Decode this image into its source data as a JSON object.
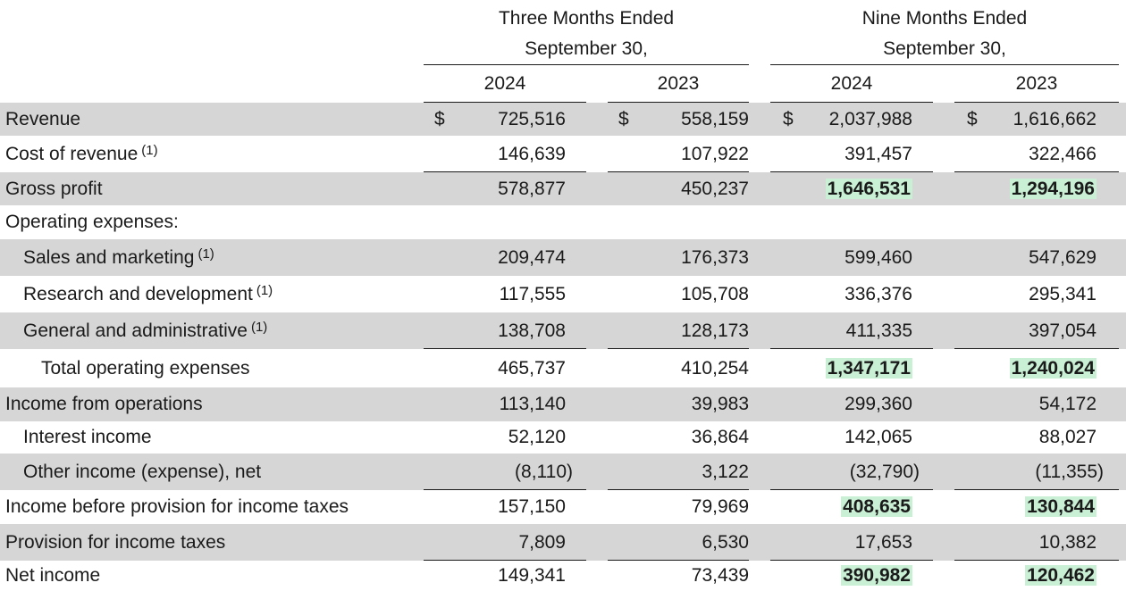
{
  "header": {
    "three_months_line1": "Three Months Ended",
    "three_months_line2": "September 30,",
    "nine_months_line1": "Nine Months Ended",
    "nine_months_line2": "September 30,",
    "years": [
      "2024",
      "2023",
      "2024",
      "2023"
    ]
  },
  "currency_symbol": "$",
  "highlight_color": "#c9f0d5",
  "rows": [
    {
      "label": "Revenue",
      "sup": "",
      "values": [
        "725,516",
        "558,159",
        "2,037,988",
        "1,616,662"
      ]
    },
    {
      "label": "Cost of revenue",
      "sup": "(1)",
      "values": [
        "146,639",
        "107,922",
        "391,457",
        "322,466"
      ]
    },
    {
      "label": "Gross profit",
      "sup": "",
      "values": [
        "578,877",
        "450,237",
        "1,646,531",
        "1,294,196"
      ]
    },
    {
      "label": "Operating expenses:",
      "sup": "",
      "values": [
        "",
        "",
        "",
        ""
      ]
    },
    {
      "label": "Sales and marketing",
      "sup": "(1)",
      "values": [
        "209,474",
        "176,373",
        "599,460",
        "547,629"
      ]
    },
    {
      "label": "Research and development",
      "sup": "(1)",
      "values": [
        "117,555",
        "105,708",
        "336,376",
        "295,341"
      ]
    },
    {
      "label": "General and administrative",
      "sup": "(1)",
      "values": [
        "138,708",
        "128,173",
        "411,335",
        "397,054"
      ]
    },
    {
      "label": "Total operating expenses",
      "sup": "",
      "values": [
        "465,737",
        "410,254",
        "1,347,171",
        "1,240,024"
      ]
    },
    {
      "label": "Income from operations",
      "sup": "",
      "values": [
        "113,140",
        "39,983",
        "299,360",
        "54,172"
      ]
    },
    {
      "label": "Interest income",
      "sup": "",
      "values": [
        "52,120",
        "36,864",
        "142,065",
        "88,027"
      ]
    },
    {
      "label": "Other income (expense), net",
      "sup": "",
      "values": [
        "(8,110)",
        "3,122",
        "(32,790)",
        "(11,355)"
      ]
    },
    {
      "label": "Income before provision for income taxes",
      "sup": "",
      "values": [
        "157,150",
        "79,969",
        "408,635",
        "130,844"
      ]
    },
    {
      "label": "Provision for income taxes",
      "sup": "",
      "values": [
        "7,809",
        "6,530",
        "17,653",
        "10,382"
      ]
    },
    {
      "label": "Net income",
      "sup": "",
      "values": [
        "149,341",
        "73,439",
        "390,982",
        "120,462"
      ]
    }
  ]
}
